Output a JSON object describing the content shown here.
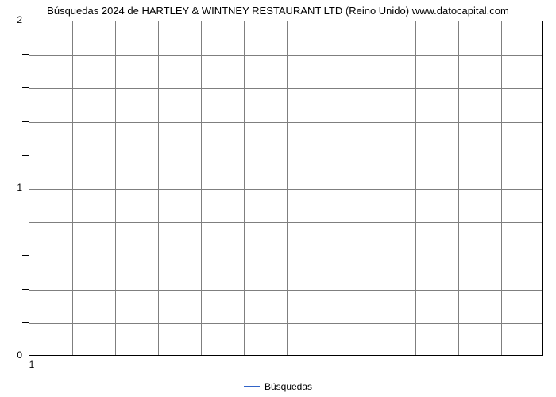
{
  "chart": {
    "type": "line",
    "title": "Búsquedas 2024 de HARTLEY & WINTNEY RESTAURANT LTD (Reino Unido) www.datocapital.com",
    "title_fontsize": 13,
    "title_color": "#000000",
    "background_color": "#ffffff",
    "plot_border_color": "#000000",
    "grid_color": "#7f7f7f",
    "grid_major_vertical_count": 12,
    "grid_minor_horizontal_lines": 10,
    "y_axis": {
      "ylim": [
        0,
        2
      ],
      "major_ticks": [
        0,
        1,
        2
      ],
      "minor_tick_count_between": 4,
      "tick_fontsize": 12
    },
    "x_axis": {
      "labels": [
        "1"
      ],
      "tick_fontsize": 12
    },
    "series": [
      {
        "name": "Búsquedas",
        "color": "#3264c8",
        "line_width": 2,
        "values": []
      }
    ],
    "legend": {
      "position": "bottom-center",
      "label": "Búsquedas",
      "swatch_color": "#3264c8",
      "fontsize": 12
    }
  }
}
